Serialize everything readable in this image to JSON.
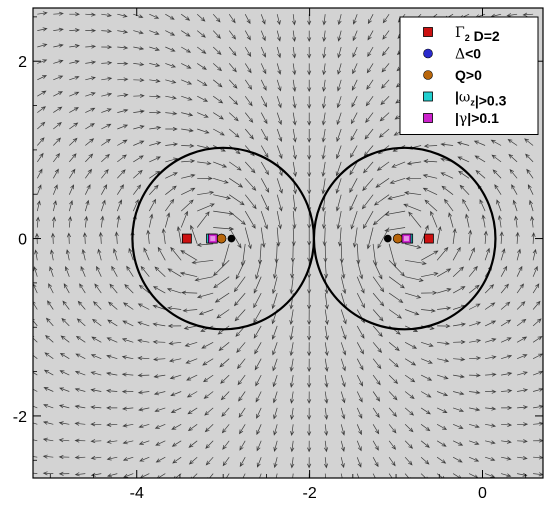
{
  "chart_data": {
    "type": "scatter",
    "title": "",
    "xlabel": "",
    "ylabel": "",
    "xlim": [
      -5.2,
      0.7
    ],
    "ylim": [
      -2.7,
      2.6
    ],
    "grid": false,
    "background_color": "#d3d3d3",
    "x_ticks": [
      -4,
      -2,
      0
    ],
    "x_tick_labels": [
      "-4",
      "-2",
      "0"
    ],
    "y_ticks": [
      -2,
      0,
      2
    ],
    "y_tick_labels": [
      "-2",
      "0",
      "2"
    ],
    "legend_position": "top-right",
    "vortex_circles": [
      {
        "cx": -3.0,
        "cy": 0,
        "r": 1.05
      },
      {
        "cx": -0.9,
        "cy": 0,
        "r": 1.05
      }
    ],
    "vector_field": {
      "description_of_content": "velocity field arrows",
      "vortex_pair_left_x": -3.1,
      "vortex_pair_right_x": -0.9,
      "strength": 1.0
    },
    "series": [
      {
        "name": "Γ2 D=2",
        "label_parts": [
          {
            "t": "Γ",
            "style": "sym"
          },
          {
            "t": "2",
            "style": "sub"
          },
          {
            "t": " D=2",
            "style": "plain"
          }
        ],
        "marker": "square",
        "color": "#cc1111",
        "points": [
          [
            -3.42,
            0
          ],
          [
            -0.62,
            0
          ]
        ]
      },
      {
        "name": "Δ<0",
        "label_parts": [
          {
            "t": "Δ",
            "style": "sym"
          },
          {
            "t": "<0",
            "style": "plain"
          }
        ],
        "marker": "circle",
        "color": "#2a2acc",
        "points": [
          [
            -3.02,
            0
          ],
          [
            -0.98,
            0
          ]
        ]
      },
      {
        "name": "Q>0",
        "label_parts": [
          {
            "t": "Q>0",
            "style": "plain"
          }
        ],
        "marker": "circle",
        "color": "#b8660b",
        "points": [
          [
            -3.02,
            0
          ],
          [
            -0.98,
            0
          ]
        ]
      },
      {
        "name": "|ωz|>0.3",
        "label_parts": [
          {
            "t": "|",
            "style": "plain"
          },
          {
            "t": "ω",
            "style": "sym"
          },
          {
            "t": "z",
            "style": "sub"
          },
          {
            "t": "|>0.3",
            "style": "plain"
          }
        ],
        "marker": "square",
        "color": "#22d0d0",
        "points": [
          [
            -3.14,
            0
          ],
          [
            -0.86,
            0
          ]
        ]
      },
      {
        "name": "|γ|>0.1",
        "label_parts": [
          {
            "t": "|",
            "style": "plain"
          },
          {
            "t": "γ",
            "style": "sym"
          },
          {
            "t": "|>0.1",
            "style": "plain"
          }
        ],
        "marker": "square",
        "color": "#cc22cc",
        "points": [
          [
            -3.12,
            0
          ],
          [
            -0.88,
            0
          ]
        ]
      }
    ],
    "extra_points": [
      {
        "name": "black-dot",
        "color": "#000000",
        "marker": "circle",
        "points": [
          [
            -3.02,
            0
          ],
          [
            -0.98,
            0
          ]
        ]
      }
    ]
  }
}
